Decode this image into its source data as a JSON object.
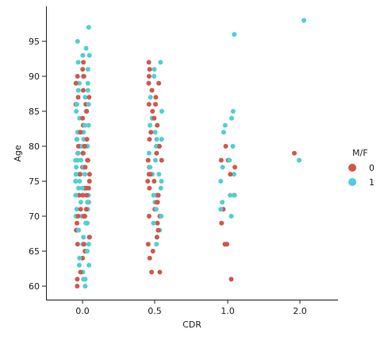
{
  "chart_data": {
    "type": "scatter",
    "subtype": "strip",
    "xlabel": "CDR",
    "ylabel": "Age",
    "x_categories": [
      "0.0",
      "0.5",
      "1.0",
      "2.0"
    ],
    "yticks": [
      60,
      65,
      70,
      75,
      80,
      85,
      90,
      95
    ],
    "ylim": [
      58.2,
      99.5
    ],
    "grid": false,
    "legend": {
      "title": "M/F",
      "placement": "right",
      "entries": [
        {
          "label": "0",
          "color": "#d1574a"
        },
        {
          "label": "1",
          "color": "#4fcfd6"
        }
      ]
    },
    "series": [
      {
        "name": "0",
        "color": "#d1574a",
        "groups": [
          {
            "category": "0.0",
            "ages": [
              60,
              61,
              62,
              64,
              65,
              66,
              66,
              67,
              68,
              68,
              69,
              69,
              70,
              70,
              70,
              71,
              71,
              72,
              72,
              73,
              73,
              73,
              74,
              74,
              74,
              75,
              75,
              76,
              76,
              77,
              77,
              77,
              78,
              78,
              79,
              79,
              80,
              80,
              80,
              81,
              81,
              82,
              82,
              83,
              84,
              85,
              86,
              86,
              87,
              87,
              88,
              89,
              90,
              90,
              91,
              92
            ]
          },
          {
            "category": "0.5",
            "ages": [
              62,
              62,
              64,
              65,
              66,
              67,
              68,
              69,
              70,
              70,
              71,
              72,
              72,
              73,
              73,
              74,
              75,
              75,
              76,
              76,
              77,
              78,
              78,
              79,
              80,
              80,
              81,
              82,
              83,
              84,
              84,
              85,
              86,
              86,
              87,
              88,
              89,
              89,
              90,
              91,
              92
            ]
          },
          {
            "category": "1.0",
            "ages": [
              61,
              66,
              66,
              66,
              69,
              71,
              73,
              76,
              77,
              78,
              78,
              80
            ]
          },
          {
            "category": "2.0",
            "ages": [
              79
            ]
          }
        ]
      },
      {
        "name": "1",
        "color": "#4fcfd6",
        "groups": [
          {
            "category": "0.0",
            "ages": [
              60,
              61,
              61,
              62,
              63,
              63,
              64,
              65,
              65,
              66,
              66,
              67,
              67,
              68,
              68,
              69,
              69,
              70,
              70,
              70,
              71,
              71,
              72,
              72,
              72,
              73,
              73,
              73,
              74,
              74,
              74,
              75,
              75,
              75,
              76,
              76,
              76,
              77,
              77,
              78,
              78,
              78,
              79,
              79,
              80,
              80,
              80,
              81,
              81,
              81,
              82,
              82,
              83,
              83,
              84,
              85,
              85,
              86,
              86,
              87,
              88,
              88,
              89,
              89,
              90,
              91,
              92,
              93,
              93,
              94,
              95,
              97
            ]
          },
          {
            "category": "0.5",
            "ages": [
              66,
              67,
              68,
              69,
              70,
              71,
              72,
              73,
              73,
              74,
              75,
              76,
              76,
              77,
              78,
              79,
              80,
              81,
              81,
              82,
              83,
              84,
              85,
              87,
              90,
              91,
              92
            ]
          },
          {
            "category": "1.0",
            "ages": [
              70,
              71,
              72,
              73,
              73,
              75,
              76,
              77,
              78,
              80,
              82,
              83,
              84,
              85,
              96
            ]
          },
          {
            "category": "2.0",
            "ages": [
              78,
              98
            ]
          }
        ]
      }
    ]
  }
}
